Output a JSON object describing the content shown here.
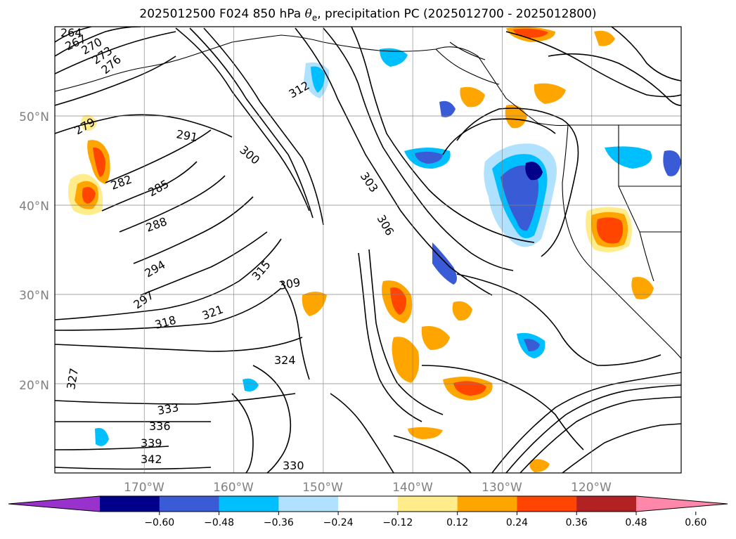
{
  "title": {
    "prefix": "2025012500 F024 850 hPa ",
    "symbol": "θ",
    "subscript": "e",
    "suffix": ", precipitation PC (2025012700 - 2025012800)"
  },
  "map": {
    "projection": "PlateCarree",
    "extent_lon": [
      -180,
      -110
    ],
    "extent_lat": [
      10,
      60
    ],
    "gridlines": true,
    "lat_ticks": [
      "20°N",
      "30°N",
      "40°N",
      "50°N"
    ],
    "lon_ticks": [
      "170°W",
      "160°W",
      "150°W",
      "140°W",
      "130°W",
      "120°W"
    ],
    "contour_color": "#000000",
    "land_outline_color": "#000000"
  },
  "theta_e_labels": [
    "264",
    "267",
    "270",
    "273",
    "276",
    "279",
    "282",
    "285",
    "288",
    "291",
    "294",
    "297",
    "300",
    "303",
    "306",
    "309",
    "312",
    "315",
    "318",
    "321",
    "324",
    "327",
    "330",
    "333",
    "336",
    "339",
    "342"
  ],
  "precip_areas": [
    {
      "sign": "positive",
      "region": "north-west of Hawaii near 43°N 177°W"
    },
    {
      "sign": "negative",
      "region": "off the Pacific Northwest coast near 40°N 128°W"
    },
    {
      "sign": "positive",
      "region": "California coast near 38°N 117°W"
    },
    {
      "sign": "positive",
      "region": "subtropical Pacific near 25°N 140°W"
    },
    {
      "sign": "negative",
      "region": "Gulf of Alaska near 55°N 148°W"
    },
    {
      "sign": "positive",
      "region": "British Columbia coast near 53°N 128°W"
    }
  ],
  "colorbar": {
    "ticks": [
      "−0.60",
      "−0.48",
      "−0.36",
      "−0.24",
      "−0.12",
      "0.12",
      "0.24",
      "0.36",
      "0.48",
      "0.60"
    ],
    "colors": [
      "#9932cc",
      "#00008b",
      "#3a5bd6",
      "#00bfff",
      "#b0e2ff",
      "#ffffff",
      "#ffec8b",
      "#ffa500",
      "#ff4500",
      "#b22222",
      "#ff88aa"
    ],
    "extend": "both"
  }
}
